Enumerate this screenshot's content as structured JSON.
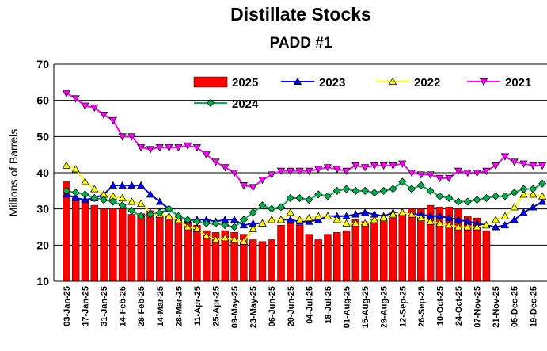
{
  "chart_data": {
    "type": "bar",
    "title": "Distillate Stocks",
    "subtitle": "PADD #1",
    "y_label": "Millions of Barrels",
    "categories": [
      "03-Jan-25",
      null,
      "17-Jan-25",
      null,
      "31-Jan-25",
      null,
      "14-Feb-25",
      null,
      "28-Feb-25",
      null,
      "14-Mar-25",
      null,
      "28-Mar-25",
      null,
      "11-Apr-25",
      null,
      "25-Apr-25",
      null,
      "09-May-25",
      null,
      "23-May-25",
      null,
      "06-Jun-25",
      null,
      "20-Jun-25",
      null,
      "04-Jul-25",
      null,
      "18-Jul-25",
      null,
      "01-Aug-25",
      null,
      "15-Aug-25",
      null,
      "29-Aug-25",
      null,
      "12-Sep-25",
      null,
      "26-Sep-25",
      null,
      "10-Oct-25",
      null,
      "24-Oct-25",
      null,
      "07-Nov-25",
      null,
      "21-Nov-25",
      null,
      "05-Dec-25",
      null,
      "19-Dec-25",
      null
    ],
    "ylim": [
      10,
      70
    ],
    "yticks": [
      10,
      20,
      30,
      40,
      50,
      60,
      70
    ],
    "grid": true,
    "series": [
      {
        "name": "2025",
        "type": "bar",
        "color": "#ff0000",
        "values": [
          37.5,
          33,
          32.5,
          31,
          30,
          30,
          30,
          28.5,
          28.7,
          29.5,
          28,
          28,
          27,
          26,
          25.5,
          24,
          23.5,
          24,
          23.5,
          23,
          21.5,
          21,
          21.5,
          25.5,
          26,
          25.5,
          23,
          21.5,
          23,
          23.5,
          24,
          27,
          26.5,
          27,
          27,
          27.5,
          29,
          30,
          30,
          31,
          30.5,
          30.5,
          30,
          28,
          27.5,
          24,
          null,
          null,
          null,
          null,
          null,
          null
        ]
      },
      {
        "name": "2023",
        "type": "line",
        "marker": "triangle-up",
        "color": "#0000ff",
        "values": [
          34,
          33,
          32.5,
          33,
          34,
          36.5,
          36.5,
          36.5,
          36.5,
          34,
          32,
          30,
          28,
          27,
          27,
          27,
          26.5,
          27,
          27,
          25.5,
          26,
          26,
          27,
          27,
          27,
          26.5,
          26.5,
          27,
          28,
          28,
          28,
          28.5,
          29,
          28.5,
          28,
          29,
          29,
          28.5,
          28.5,
          28,
          28,
          27.5,
          27,
          26.5,
          26,
          25.5,
          25,
          25.5,
          27,
          29,
          30.5,
          32
        ]
      },
      {
        "name": "2022",
        "type": "line",
        "marker": "triangle-up",
        "color": "#ffff00",
        "values": [
          42,
          41,
          37.5,
          35.5,
          34,
          33.5,
          33,
          32,
          31.5,
          29,
          28.5,
          28,
          27,
          25,
          24.5,
          22.5,
          21.5,
          22,
          21.5,
          21,
          24.5,
          26,
          27,
          27,
          29,
          27,
          27.5,
          28,
          28,
          27,
          26,
          26,
          26,
          27,
          27.5,
          28.5,
          29,
          28.5,
          27.5,
          26.5,
          26,
          25.5,
          25,
          25,
          25,
          25.5,
          27,
          28,
          30.5,
          34,
          34,
          33.5
        ]
      },
      {
        "name": "2021",
        "type": "line",
        "marker": "triangle-down",
        "color": "#ff00ff",
        "values": [
          62,
          60.5,
          58.5,
          58,
          56,
          54.5,
          50,
          50,
          47,
          46.5,
          47,
          47,
          47,
          47.5,
          47,
          45,
          43,
          41.5,
          40,
          36.5,
          36,
          38,
          39.5,
          40.5,
          40.5,
          40.5,
          40.5,
          41,
          41.5,
          41,
          40.5,
          42,
          41.5,
          42,
          42,
          42,
          42.5,
          40,
          39.5,
          39.5,
          38.5,
          38.5,
          40.5,
          40,
          40,
          40.5,
          42,
          44.5,
          43,
          42.5,
          42,
          42
        ]
      },
      {
        "name": "2024",
        "type": "line",
        "marker": "diamond",
        "color": "#00b050",
        "values": [
          35,
          34.5,
          34,
          33,
          32.5,
          32,
          31,
          29.5,
          28,
          28.5,
          29,
          30,
          28,
          27,
          26.5,
          26,
          26,
          25.5,
          25,
          27,
          29,
          31,
          30,
          30.5,
          33,
          33,
          32.5,
          34,
          33.5,
          35,
          35.5,
          35,
          35,
          34.5,
          35,
          35.5,
          37.5,
          35.5,
          36.5,
          35,
          33.5,
          33,
          32,
          32,
          32.5,
          33,
          33.5,
          33.5,
          34.5,
          35.5,
          35.5,
          37
        ]
      }
    ]
  }
}
